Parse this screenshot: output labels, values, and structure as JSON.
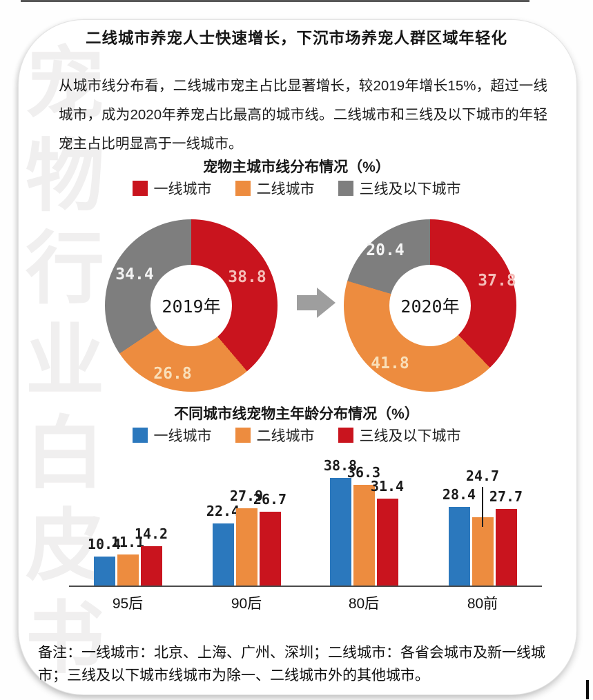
{
  "page": {
    "title": "二线城市养宠人士快速增长，下沉市场养宠人群区域年轻化",
    "paragraph": "从城市线分布看，二线城市宠主占比显著增长，较2019年增长15%，超过一线城市，成为2020年养宠占比最高的城市线。二线城市和三线及以下城市的年轻宠主占比明显高于一线城市。",
    "footnote": "备注：一线城市：北京、上海、广州、深圳；二线城市：各省会城市及新一线城市；三线及以下城市线城市为除一、二线城市外的其他城市。",
    "watermark": "宠物行业白皮书"
  },
  "colors": {
    "tier1_red": "#C9141E",
    "tier2_orange": "#ED8C3F",
    "tier3_gray": "#7E7E7E",
    "tier1_blue": "#2B78BD",
    "arrow_gray": "#9E9E9E",
    "axis": "#4A4A4A",
    "watermark_gray": "#F0EFEF"
  },
  "chart_data": [
    {
      "type": "pie",
      "subtype": "donut-pair",
      "title": "宠物主城市线分布情况（%）",
      "legend": [
        {
          "label": "一线城市",
          "color": "#C9141E"
        },
        {
          "label": "二线城市",
          "color": "#ED8C3F"
        },
        {
          "label": "三线及以下城市",
          "color": "#7E7E7E"
        }
      ],
      "donuts": [
        {
          "center_label": "2019年",
          "slices": [
            {
              "name": "一线城市",
              "value": 38.8,
              "color": "#C9141E",
              "label_color": "#F4BDB8"
            },
            {
              "name": "二线城市",
              "value": 26.8,
              "color": "#ED8C3F",
              "label_color": "#F9DFB9"
            },
            {
              "name": "三线及以下城市",
              "value": 34.4,
              "color": "#7E7E7E",
              "label_color": "#F4F4F4"
            }
          ]
        },
        {
          "center_label": "2020年",
          "slices": [
            {
              "name": "一线城市",
              "value": 37.8,
              "color": "#C9141E",
              "label_color": "#F4BDB8"
            },
            {
              "name": "二线城市",
              "value": 41.8,
              "color": "#ED8C3F",
              "label_color": "#F9DFB9"
            },
            {
              "name": "三线及以下城市",
              "value": 20.4,
              "color": "#7E7E7E",
              "label_color": "#F4F4F4"
            }
          ]
        }
      ]
    },
    {
      "type": "bar",
      "title": "不同城市线宠物主年龄分布情况（%）",
      "categories": [
        "95后",
        "90后",
        "80后",
        "80前"
      ],
      "series": [
        {
          "name": "一线城市",
          "color": "#2B78BD",
          "values": [
            10.4,
            22.4,
            38.8,
            28.4
          ]
        },
        {
          "name": "二线城市",
          "color": "#ED8C3F",
          "values": [
            11.1,
            27.9,
            36.3,
            24.7
          ]
        },
        {
          "name": "三线及以下城市",
          "color": "#C9141E",
          "values": [
            14.2,
            26.7,
            31.4,
            27.7
          ]
        }
      ],
      "ylim": [
        0,
        45
      ],
      "grid": false,
      "legend_position": "top"
    }
  ]
}
